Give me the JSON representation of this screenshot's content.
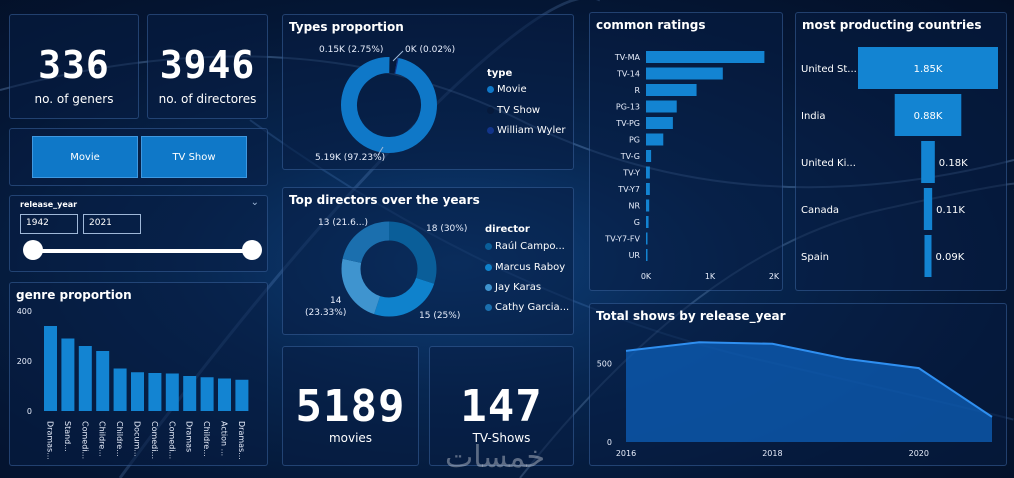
{
  "kpis": {
    "geners": {
      "value": "336",
      "label": "no. of geners"
    },
    "directors": {
      "value": "3946",
      "label": "no. of directores"
    },
    "movies": {
      "value": "5189",
      "label": "movies"
    },
    "tvshows": {
      "value": "147",
      "label": "TV-Shows"
    }
  },
  "type_filter": {
    "movie_label": "Movie",
    "tv_label": "TV Show"
  },
  "release_year": {
    "label": "release_year",
    "from": "1942",
    "to": "2021"
  },
  "colors": {
    "accent": "#0f78c8",
    "bar": "#1384d2",
    "dark": "#061a3c"
  },
  "chart_data": [
    {
      "id": "genre",
      "type": "bar",
      "title": "genre proportion",
      "categories": [
        "Dramas...",
        "Stand...",
        "Comedi...",
        "Childre...",
        "Childre...",
        "Docum...",
        "Comedi...",
        "Comedi...",
        "Dramas",
        "Childre...",
        "Action ...",
        "Dramas..."
      ],
      "values": [
        340,
        290,
        260,
        240,
        170,
        155,
        152,
        150,
        140,
        135,
        130,
        125
      ],
      "yticks": [
        "400",
        "200",
        "0"
      ],
      "ylim": [
        0,
        400
      ]
    },
    {
      "id": "types",
      "type": "pie",
      "title": "Types proportion",
      "legend_title": "type",
      "slices": [
        {
          "name": "Movie",
          "value": 5189,
          "label": "5.19K (97.23%)",
          "color": "#0f78c8"
        },
        {
          "name": "TV Show",
          "value": 147,
          "label": "0.15K (2.75%)",
          "color": "#061a3c"
        },
        {
          "name": "William Wyler",
          "value": 1,
          "label": "0K (0.02%)",
          "color": "#12348a"
        }
      ]
    },
    {
      "id": "directors",
      "type": "pie",
      "title": "Top directors over the years",
      "legend_title": "director",
      "slices": [
        {
          "name": "Raúl Campo...",
          "value": 18,
          "label": "18 (30%)",
          "color": "#0a5e99"
        },
        {
          "name": "Marcus Raboy",
          "value": 15,
          "label": "15 (25%)",
          "color": "#0f82cc"
        },
        {
          "name": "Jay Karas",
          "value": 14,
          "label": "14 (23.33%)",
          "color": "#3f94cf"
        },
        {
          "name": "Cathy Garcia...",
          "value": 13,
          "label": "13 (21.6...)",
          "color": "#1b6fae"
        }
      ],
      "label_14_line1": "14",
      "label_14_line2": "(23.33%)"
    },
    {
      "id": "ratings",
      "type": "bar",
      "orientation": "horizontal",
      "title": "common ratings",
      "categories": [
        "TV-MA",
        "TV-14",
        "R",
        "PG-13",
        "TV-PG",
        "PG",
        "TV-G",
        "TV-Y",
        "TV-Y7",
        "NR",
        "G",
        "TV-Y7-FV",
        "UR"
      ],
      "values": [
        1850,
        1200,
        790,
        480,
        420,
        270,
        80,
        60,
        60,
        50,
        40,
        5,
        5
      ],
      "xticks": [
        "0K",
        "1K",
        "2K"
      ],
      "xlim": [
        0,
        2000
      ]
    },
    {
      "id": "countries",
      "type": "bar",
      "orientation": "funnel",
      "title": "most producting countries",
      "categories": [
        "United St...",
        "India",
        "United Ki...",
        "Canada",
        "Spain"
      ],
      "values": [
        1.85,
        0.88,
        0.18,
        0.11,
        0.09
      ],
      "labels": [
        "1.85K",
        "0.88K",
        "0.18K",
        "0.11K",
        "0.09K"
      ]
    },
    {
      "id": "release",
      "type": "area",
      "title": "Total shows by release_year",
      "x": [
        2016,
        2017,
        2018,
        2019,
        2020,
        2021
      ],
      "y": [
        580,
        635,
        625,
        530,
        470,
        160
      ],
      "xticks": [
        "2016",
        "2018",
        "2020"
      ],
      "yticks": [
        "500",
        "0"
      ],
      "ylim": [
        0,
        700
      ]
    }
  ],
  "watermark": "خمسات"
}
